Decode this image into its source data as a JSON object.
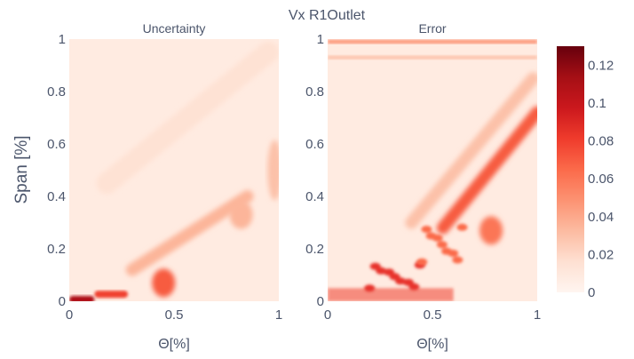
{
  "title": "Vx R1Outlet",
  "ylabel": "Span [%]",
  "colorbar": {
    "colorscale": "Reds",
    "range": [
      0,
      0.13
    ],
    "ticks": [
      "0",
      "0.02",
      "0.04",
      "0.06",
      "0.08",
      "0.1",
      "0.12"
    ]
  },
  "chart_data": [
    {
      "type": "heatmap",
      "title": "Uncertainty",
      "xlabel": "Θ[%]",
      "ylabel": "Span [%]",
      "xlim": [
        0,
        1
      ],
      "ylim": [
        0,
        1
      ],
      "x_ticks": [
        "0",
        "0.5",
        "1"
      ],
      "y_ticks": [
        "0",
        "0.2",
        "0.4",
        "0.6",
        "0.8",
        "1"
      ],
      "value_range": [
        0,
        0.13
      ],
      "features": [
        {
          "kind": "hub-spot",
          "x": [
            0.0,
            0.12
          ],
          "y": 0.0,
          "value": 0.11
        },
        {
          "kind": "hub-spot",
          "x": [
            0.12,
            0.28
          ],
          "y": 0.02,
          "value": 0.08
        },
        {
          "kind": "blob",
          "x": 0.45,
          "y": 0.07,
          "value": 0.07
        },
        {
          "kind": "band",
          "from": [
            0.3,
            0.12
          ],
          "to": [
            0.85,
            0.4
          ],
          "value": 0.035
        },
        {
          "kind": "blob",
          "x": 0.82,
          "y": 0.33,
          "value": 0.035
        },
        {
          "kind": "faint-band",
          "from": [
            0.18,
            0.45
          ],
          "to": [
            0.95,
            0.95
          ],
          "value": 0.015
        },
        {
          "kind": "tip-edge",
          "x": 0.98,
          "y": 0.5,
          "value": 0.03
        }
      ]
    },
    {
      "type": "heatmap",
      "title": "Error",
      "xlabel": "Θ[%]",
      "ylabel": "",
      "xlim": [
        0,
        1
      ],
      "ylim": [
        0,
        1
      ],
      "x_ticks": [
        "0",
        "0.5",
        "1"
      ],
      "y_ticks": [
        "0",
        "0.2",
        "0.4",
        "0.6",
        "0.8",
        "1"
      ],
      "value_range": [
        0,
        0.13
      ],
      "features": [
        {
          "kind": "hub-band",
          "x": [
            0.0,
            0.6
          ],
          "y": [
            0.0,
            0.05
          ],
          "value": 0.08
        },
        {
          "kind": "cluster",
          "x": [
            0.2,
            0.45
          ],
          "y": [
            0.05,
            0.15
          ],
          "value": 0.085
        },
        {
          "kind": "cluster",
          "x": [
            0.45,
            0.65
          ],
          "y": [
            0.15,
            0.3
          ],
          "value": 0.065
        },
        {
          "kind": "band",
          "from": [
            0.55,
            0.28
          ],
          "to": [
            1.0,
            0.72
          ],
          "value": 0.07
        },
        {
          "kind": "band",
          "from": [
            0.4,
            0.3
          ],
          "to": [
            0.98,
            0.85
          ],
          "value": 0.03
        },
        {
          "kind": "blob",
          "x": 0.78,
          "y": 0.27,
          "value": 0.06
        },
        {
          "kind": "shroud-strip",
          "x": [
            0.0,
            1.0
          ],
          "y": 0.99,
          "value": 0.05
        },
        {
          "kind": "shroud-strip",
          "x": [
            0.0,
            1.0
          ],
          "y": 0.93,
          "value": 0.03
        }
      ]
    }
  ]
}
